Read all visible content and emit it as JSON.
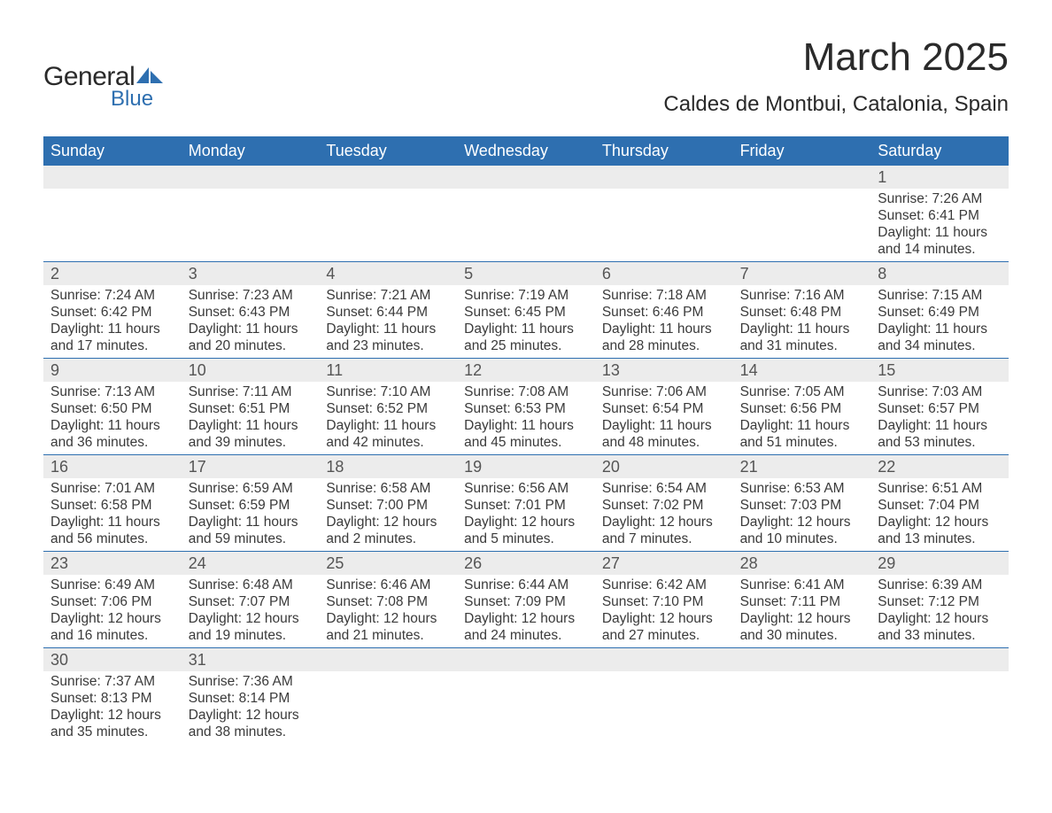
{
  "brand": {
    "name_general": "General",
    "name_blue": "Blue",
    "mark_color": "#2e6fb0"
  },
  "title": {
    "month": "March 2025",
    "location": "Caldes de Montbui, Catalonia, Spain"
  },
  "colors": {
    "header_bg": "#2e6fb0",
    "header_fg": "#ffffff",
    "row_stripe": "#ececec",
    "divider": "#2e6fb0",
    "body_text": "#3a3a3a",
    "page_bg": "#ffffff"
  },
  "typography": {
    "title_fontsize": 44,
    "location_fontsize": 24,
    "dayhead_fontsize": 18,
    "daynum_fontsize": 18,
    "body_fontsize": 15.5
  },
  "calendar": {
    "day_headers": [
      "Sunday",
      "Monday",
      "Tuesday",
      "Wednesday",
      "Thursday",
      "Friday",
      "Saturday"
    ],
    "weeks": [
      [
        null,
        null,
        null,
        null,
        null,
        null,
        {
          "n": "1",
          "sunrise": "Sunrise: 7:26 AM",
          "sunset": "Sunset: 6:41 PM",
          "d1": "Daylight: 11 hours",
          "d2": "and 14 minutes."
        }
      ],
      [
        {
          "n": "2",
          "sunrise": "Sunrise: 7:24 AM",
          "sunset": "Sunset: 6:42 PM",
          "d1": "Daylight: 11 hours",
          "d2": "and 17 minutes."
        },
        {
          "n": "3",
          "sunrise": "Sunrise: 7:23 AM",
          "sunset": "Sunset: 6:43 PM",
          "d1": "Daylight: 11 hours",
          "d2": "and 20 minutes."
        },
        {
          "n": "4",
          "sunrise": "Sunrise: 7:21 AM",
          "sunset": "Sunset: 6:44 PM",
          "d1": "Daylight: 11 hours",
          "d2": "and 23 minutes."
        },
        {
          "n": "5",
          "sunrise": "Sunrise: 7:19 AM",
          "sunset": "Sunset: 6:45 PM",
          "d1": "Daylight: 11 hours",
          "d2": "and 25 minutes."
        },
        {
          "n": "6",
          "sunrise": "Sunrise: 7:18 AM",
          "sunset": "Sunset: 6:46 PM",
          "d1": "Daylight: 11 hours",
          "d2": "and 28 minutes."
        },
        {
          "n": "7",
          "sunrise": "Sunrise: 7:16 AM",
          "sunset": "Sunset: 6:48 PM",
          "d1": "Daylight: 11 hours",
          "d2": "and 31 minutes."
        },
        {
          "n": "8",
          "sunrise": "Sunrise: 7:15 AM",
          "sunset": "Sunset: 6:49 PM",
          "d1": "Daylight: 11 hours",
          "d2": "and 34 minutes."
        }
      ],
      [
        {
          "n": "9",
          "sunrise": "Sunrise: 7:13 AM",
          "sunset": "Sunset: 6:50 PM",
          "d1": "Daylight: 11 hours",
          "d2": "and 36 minutes."
        },
        {
          "n": "10",
          "sunrise": "Sunrise: 7:11 AM",
          "sunset": "Sunset: 6:51 PM",
          "d1": "Daylight: 11 hours",
          "d2": "and 39 minutes."
        },
        {
          "n": "11",
          "sunrise": "Sunrise: 7:10 AM",
          "sunset": "Sunset: 6:52 PM",
          "d1": "Daylight: 11 hours",
          "d2": "and 42 minutes."
        },
        {
          "n": "12",
          "sunrise": "Sunrise: 7:08 AM",
          "sunset": "Sunset: 6:53 PM",
          "d1": "Daylight: 11 hours",
          "d2": "and 45 minutes."
        },
        {
          "n": "13",
          "sunrise": "Sunrise: 7:06 AM",
          "sunset": "Sunset: 6:54 PM",
          "d1": "Daylight: 11 hours",
          "d2": "and 48 minutes."
        },
        {
          "n": "14",
          "sunrise": "Sunrise: 7:05 AM",
          "sunset": "Sunset: 6:56 PM",
          "d1": "Daylight: 11 hours",
          "d2": "and 51 minutes."
        },
        {
          "n": "15",
          "sunrise": "Sunrise: 7:03 AM",
          "sunset": "Sunset: 6:57 PM",
          "d1": "Daylight: 11 hours",
          "d2": "and 53 minutes."
        }
      ],
      [
        {
          "n": "16",
          "sunrise": "Sunrise: 7:01 AM",
          "sunset": "Sunset: 6:58 PM",
          "d1": "Daylight: 11 hours",
          "d2": "and 56 minutes."
        },
        {
          "n": "17",
          "sunrise": "Sunrise: 6:59 AM",
          "sunset": "Sunset: 6:59 PM",
          "d1": "Daylight: 11 hours",
          "d2": "and 59 minutes."
        },
        {
          "n": "18",
          "sunrise": "Sunrise: 6:58 AM",
          "sunset": "Sunset: 7:00 PM",
          "d1": "Daylight: 12 hours",
          "d2": "and 2 minutes."
        },
        {
          "n": "19",
          "sunrise": "Sunrise: 6:56 AM",
          "sunset": "Sunset: 7:01 PM",
          "d1": "Daylight: 12 hours",
          "d2": "and 5 minutes."
        },
        {
          "n": "20",
          "sunrise": "Sunrise: 6:54 AM",
          "sunset": "Sunset: 7:02 PM",
          "d1": "Daylight: 12 hours",
          "d2": "and 7 minutes."
        },
        {
          "n": "21",
          "sunrise": "Sunrise: 6:53 AM",
          "sunset": "Sunset: 7:03 PM",
          "d1": "Daylight: 12 hours",
          "d2": "and 10 minutes."
        },
        {
          "n": "22",
          "sunrise": "Sunrise: 6:51 AM",
          "sunset": "Sunset: 7:04 PM",
          "d1": "Daylight: 12 hours",
          "d2": "and 13 minutes."
        }
      ],
      [
        {
          "n": "23",
          "sunrise": "Sunrise: 6:49 AM",
          "sunset": "Sunset: 7:06 PM",
          "d1": "Daylight: 12 hours",
          "d2": "and 16 minutes."
        },
        {
          "n": "24",
          "sunrise": "Sunrise: 6:48 AM",
          "sunset": "Sunset: 7:07 PM",
          "d1": "Daylight: 12 hours",
          "d2": "and 19 minutes."
        },
        {
          "n": "25",
          "sunrise": "Sunrise: 6:46 AM",
          "sunset": "Sunset: 7:08 PM",
          "d1": "Daylight: 12 hours",
          "d2": "and 21 minutes."
        },
        {
          "n": "26",
          "sunrise": "Sunrise: 6:44 AM",
          "sunset": "Sunset: 7:09 PM",
          "d1": "Daylight: 12 hours",
          "d2": "and 24 minutes."
        },
        {
          "n": "27",
          "sunrise": "Sunrise: 6:42 AM",
          "sunset": "Sunset: 7:10 PM",
          "d1": "Daylight: 12 hours",
          "d2": "and 27 minutes."
        },
        {
          "n": "28",
          "sunrise": "Sunrise: 6:41 AM",
          "sunset": "Sunset: 7:11 PM",
          "d1": "Daylight: 12 hours",
          "d2": "and 30 minutes."
        },
        {
          "n": "29",
          "sunrise": "Sunrise: 6:39 AM",
          "sunset": "Sunset: 7:12 PM",
          "d1": "Daylight: 12 hours",
          "d2": "and 33 minutes."
        }
      ],
      [
        {
          "n": "30",
          "sunrise": "Sunrise: 7:37 AM",
          "sunset": "Sunset: 8:13 PM",
          "d1": "Daylight: 12 hours",
          "d2": "and 35 minutes."
        },
        {
          "n": "31",
          "sunrise": "Sunrise: 7:36 AM",
          "sunset": "Sunset: 8:14 PM",
          "d1": "Daylight: 12 hours",
          "d2": "and 38 minutes."
        },
        null,
        null,
        null,
        null,
        null
      ]
    ]
  }
}
